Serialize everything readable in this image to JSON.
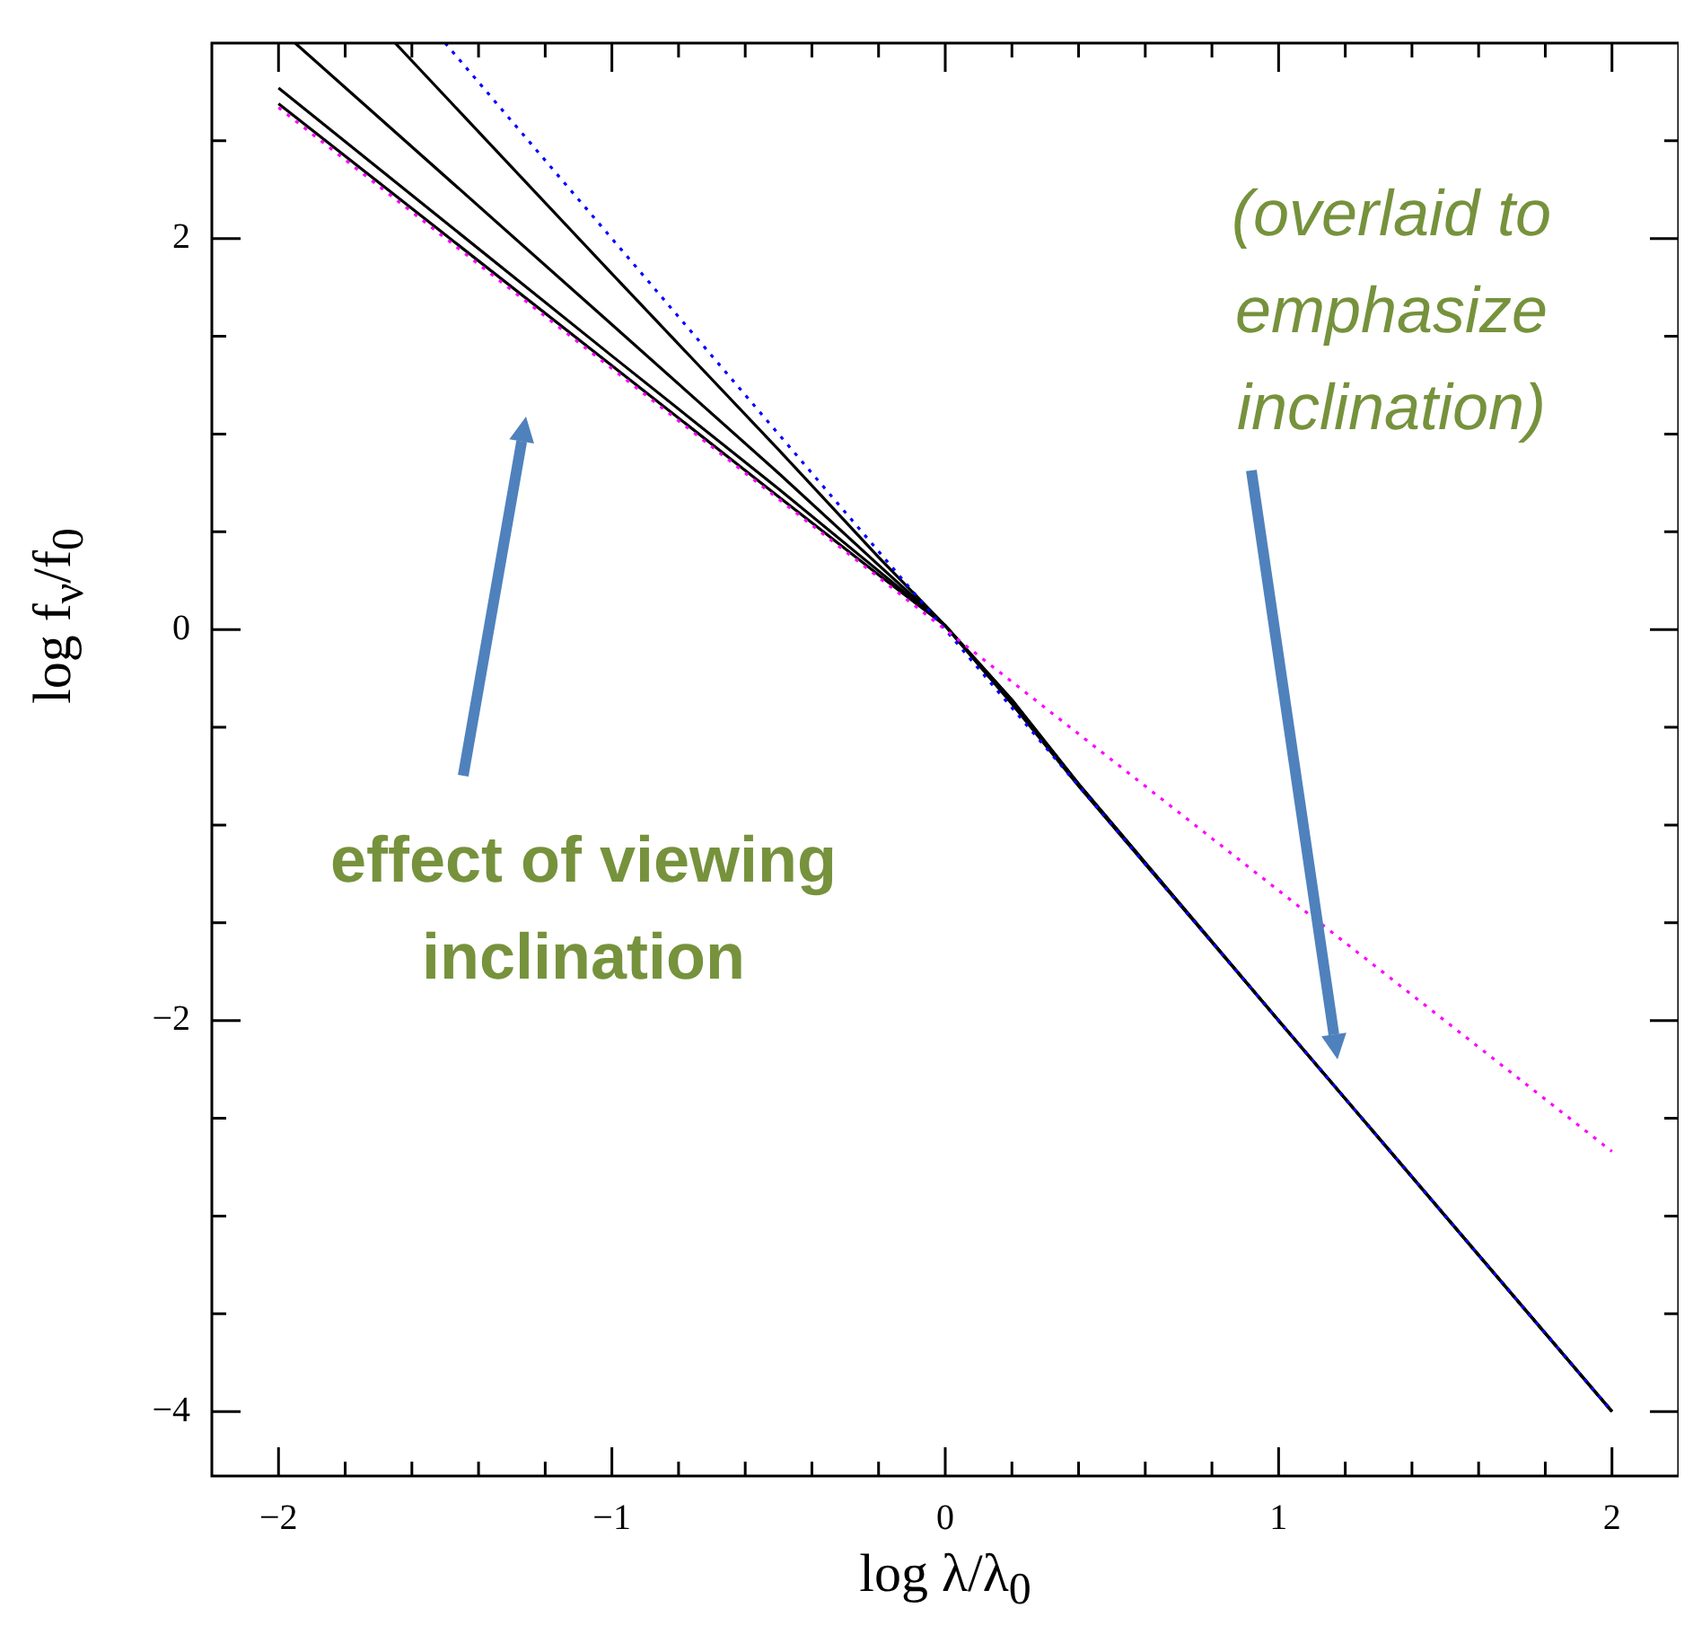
{
  "chart_data": {
    "type": "line",
    "xlabel": "log λ/λ$_{0}$",
    "ylabel": "log f$_{ν}$/f$_{0}$",
    "xlim": [
      -2.2,
      2.2
    ],
    "ylim": [
      -4.33,
      3
    ],
    "xticks": [
      {
        "value": -2,
        "label": "−2"
      },
      {
        "value": -1.8,
        "label": null
      },
      {
        "value": -1.6,
        "label": null
      },
      {
        "value": -1.4,
        "label": null
      },
      {
        "value": -1.2,
        "label": null
      },
      {
        "value": -1,
        "label": "−1"
      },
      {
        "value": -0.8,
        "label": null
      },
      {
        "value": -0.6,
        "label": null
      },
      {
        "value": -0.4,
        "label": null
      },
      {
        "value": -0.2,
        "label": null
      },
      0,
      {
        "value": 0.2,
        "label": null
      },
      {
        "value": 0.4,
        "label": null
      },
      {
        "value": 0.6,
        "label": null
      },
      {
        "value": 0.8,
        "label": null
      },
      1,
      {
        "value": 1.2,
        "label": null
      },
      {
        "value": 1.4,
        "label": null
      },
      {
        "value": 1.6,
        "label": null
      },
      {
        "value": 1.8,
        "label": null
      },
      2
    ],
    "yticks": [
      {
        "value": -4,
        "label": "−4"
      },
      {
        "value": -3.5,
        "label": null
      },
      {
        "value": -3,
        "label": null
      },
      {
        "value": -2.5,
        "label": null
      },
      {
        "value": -2,
        "label": "−2"
      },
      {
        "value": -1.5,
        "label": null
      },
      {
        "value": -1,
        "label": null
      },
      {
        "value": -0.5,
        "label": null
      },
      0,
      {
        "value": 0.5,
        "label": null
      },
      {
        "value": 1,
        "label": null
      },
      {
        "value": 1.5,
        "label": null
      },
      2,
      {
        "value": 2.5,
        "label": null
      }
    ],
    "grid": false,
    "legend": false,
    "marker": "none",
    "series": [
      {
        "color": "#ff00ff",
        "line_style": "dotted",
        "x": [
          -2,
          2
        ],
        "values": [
          2.67,
          -2.67
        ]
      },
      {
        "color": "#0000ff",
        "line_style": "dotted",
        "x": [
          -1.5,
          2
        ],
        "values": [
          3,
          -4
        ]
      },
      {
        "color": "#000000",
        "line_style": "solid",
        "x": [
          -2,
          -1,
          -0.5,
          -0.2,
          0,
          0.2,
          0.4,
          1,
          2
        ],
        "values": [
          2.69,
          1.35,
          0.68,
          0.28,
          0.02,
          -0.36,
          -0.79,
          -2,
          -4
        ]
      },
      {
        "color": "#000000",
        "line_style": "solid",
        "x": [
          -2,
          -1,
          -0.5,
          -0.2,
          0,
          0.2,
          0.4,
          1,
          2
        ],
        "values": [
          2.77,
          1.4,
          0.72,
          0.3,
          0.02,
          -0.36,
          -0.79,
          -2,
          -4
        ]
      },
      {
        "color": "#000000",
        "line_style": "solid",
        "x": [
          -1.95,
          -1,
          -0.5,
          -0.2,
          0,
          0.2,
          0.4,
          1,
          2
        ],
        "values": [
          3,
          1.56,
          0.8,
          0.33,
          0.02,
          -0.37,
          -0.79,
          -2,
          -4
        ]
      },
      {
        "color": "#000000",
        "line_style": "solid",
        "x": [
          -1.65,
          -1,
          -0.5,
          -0.2,
          0,
          0.2,
          0.4,
          1,
          2
        ],
        "values": [
          3,
          1.82,
          0.92,
          0.37,
          0.02,
          -0.38,
          -0.8,
          -2,
          -4
        ]
      }
    ],
    "annotations": [
      "effect of viewing inclination",
      "(overlaid to emphasize inclination)"
    ]
  }
}
